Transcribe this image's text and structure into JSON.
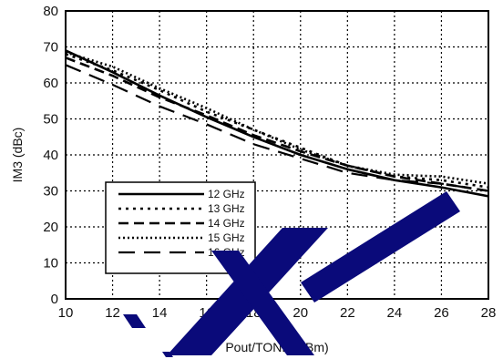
{
  "chart_data": {
    "type": "line",
    "xlabel": "Pout/TONE (dBm)",
    "ylabel": "IM3 (dBc)",
    "xlim": [
      10,
      28
    ],
    "ylim": [
      0,
      80
    ],
    "xticks": [
      "10",
      "12",
      "14",
      "16",
      "18",
      "20",
      "22",
      "24",
      "26",
      "28"
    ],
    "yticks": [
      "0",
      "10",
      "20",
      "30",
      "40",
      "50",
      "60",
      "70",
      "80"
    ],
    "grid": true,
    "legend_position": "lower-left",
    "watermark": "stylized diagonal blue mark over the plot",
    "series": [
      {
        "name": "12 GHz",
        "line_style": "solid",
        "x": [
          10,
          12,
          14,
          16,
          18,
          20,
          22,
          24,
          26,
          28
        ],
        "y": [
          69,
          63,
          56.5,
          50.5,
          45,
          40,
          36,
          33,
          31,
          28.5
        ]
      },
      {
        "name": "13 GHz",
        "line_style": "dotted",
        "x": [
          10,
          12,
          14,
          16,
          18,
          20,
          22,
          24,
          26,
          28
        ],
        "y": [
          68,
          63.5,
          58,
          52,
          47,
          42,
          37,
          34,
          33,
          31
        ]
      },
      {
        "name": "14 GHz",
        "line_style": "dashed",
        "x": [
          10,
          12,
          14,
          16,
          18,
          20,
          22,
          24,
          26,
          28
        ],
        "y": [
          67,
          62,
          56,
          51,
          45.5,
          41,
          37,
          34,
          32,
          30
        ]
      },
      {
        "name": "15 GHz",
        "line_style": "dotted-dense",
        "x": [
          10,
          12,
          14,
          16,
          18,
          20,
          22,
          24,
          26,
          28
        ],
        "y": [
          68.5,
          64.5,
          58.5,
          53,
          47,
          41.5,
          37,
          34.5,
          34,
          32
        ]
      },
      {
        "name": "16 GHz",
        "line_style": "long-dash",
        "x": [
          10,
          12,
          14,
          16,
          18,
          20,
          22,
          24,
          26,
          28
        ],
        "y": [
          65,
          59.5,
          53.5,
          48.5,
          43,
          39,
          35,
          33,
          32,
          30
        ]
      }
    ],
    "colors": {
      "lines": "#000000",
      "watermark": "#0a0a7a",
      "background": "#ffffff"
    }
  }
}
